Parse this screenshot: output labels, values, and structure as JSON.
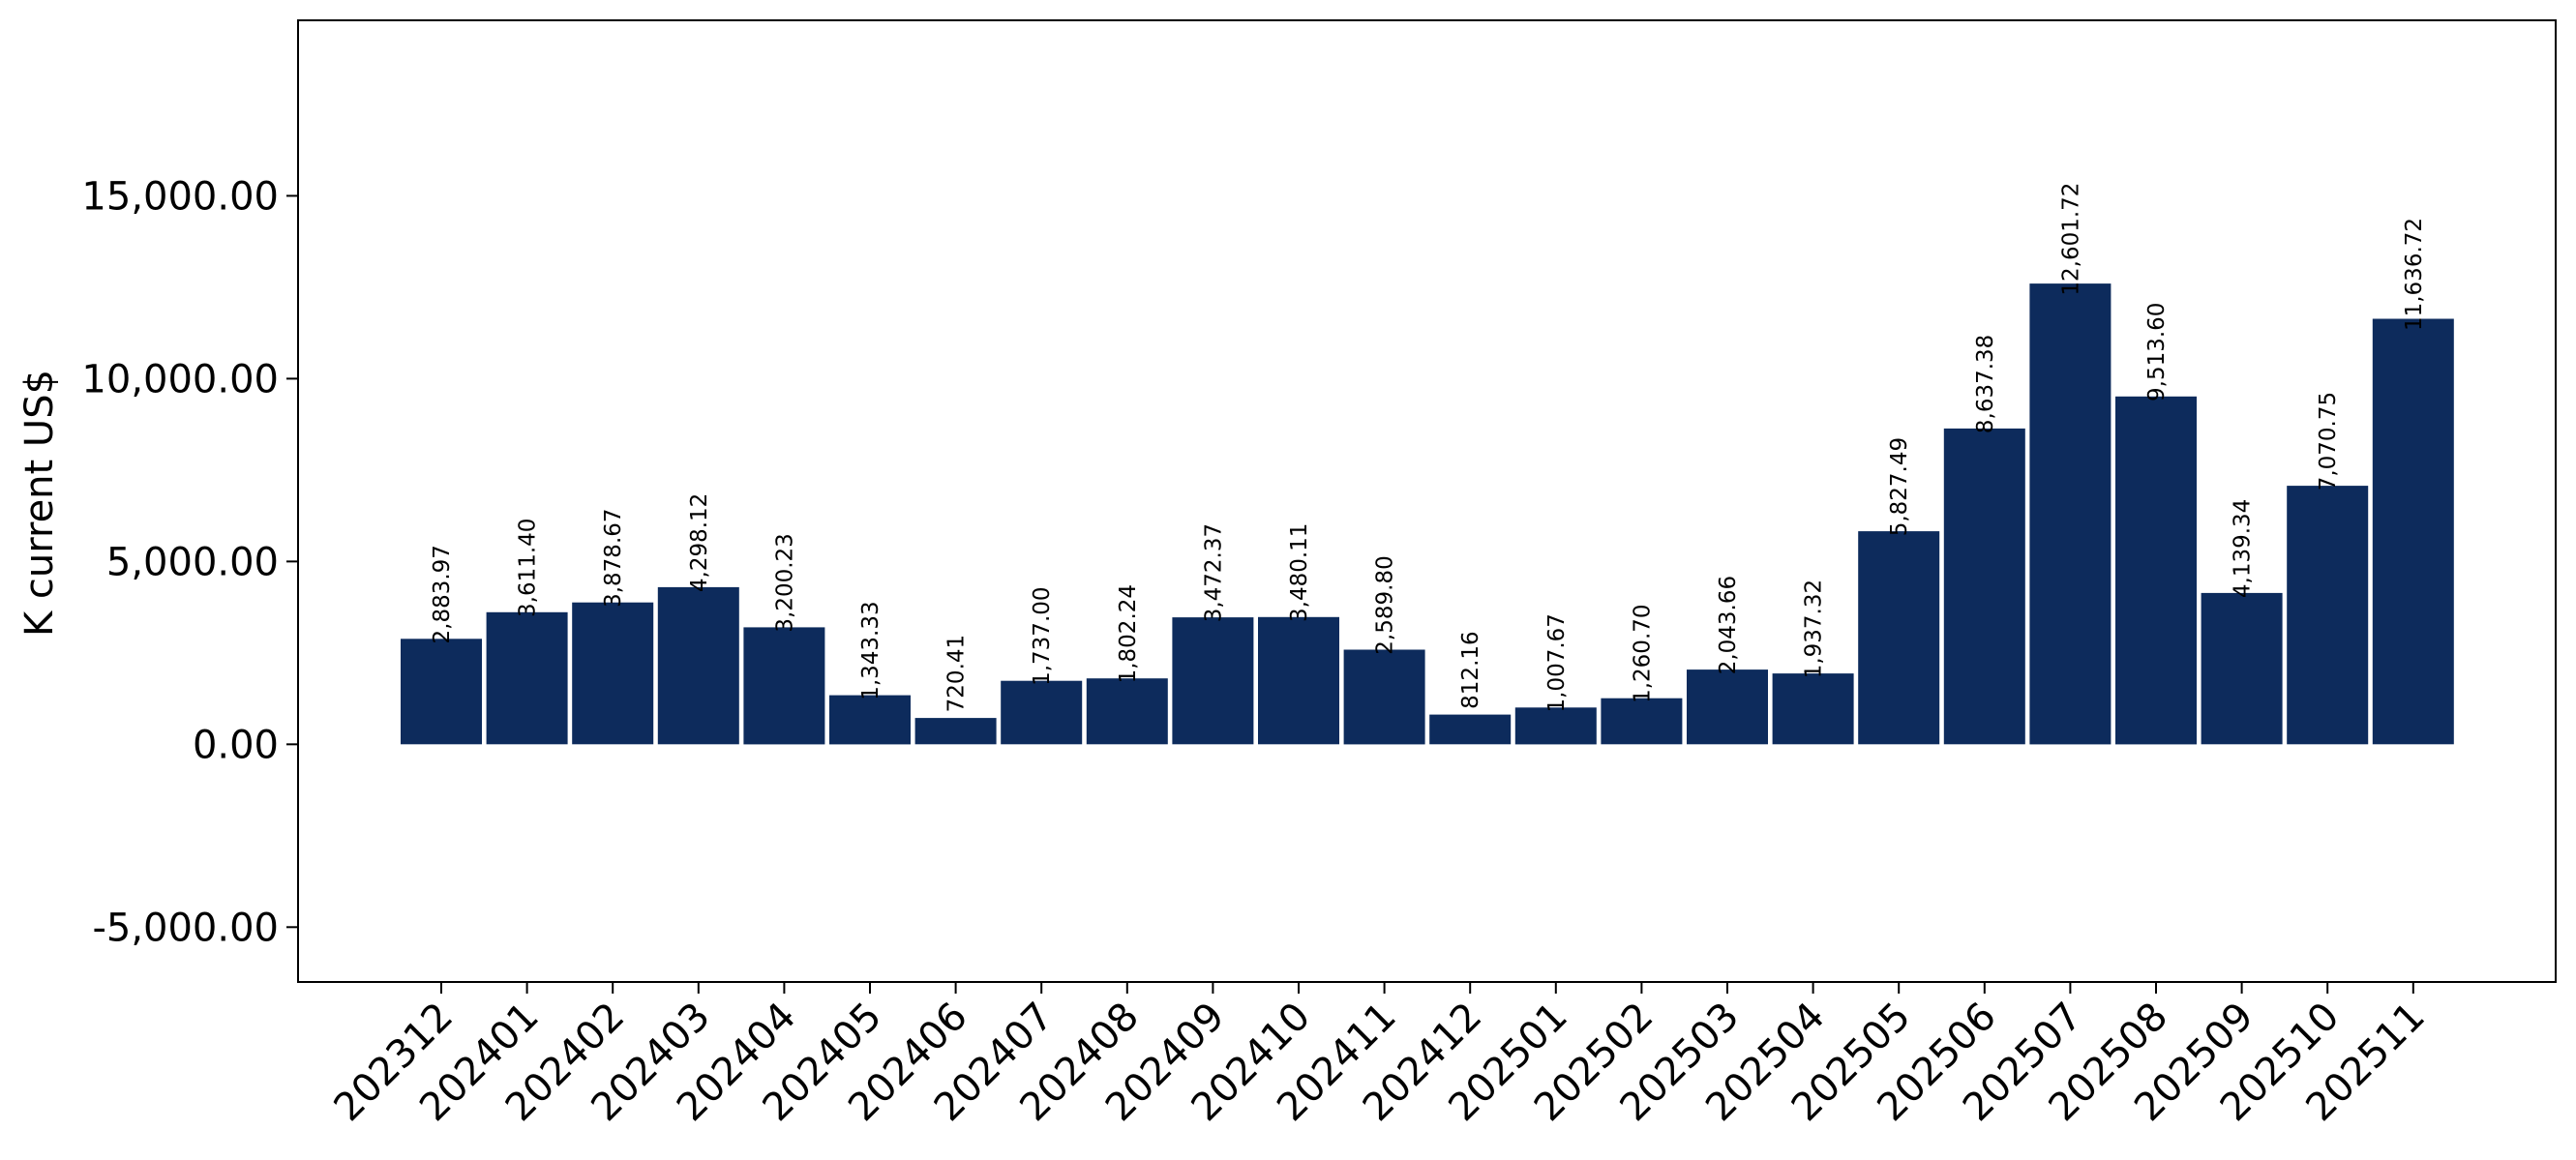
{
  "chart_data": {
    "type": "bar",
    "title": "",
    "xlabel": "",
    "ylabel": "K current US$",
    "ylim": [
      -6500,
      19800
    ],
    "yticks": [
      -5000,
      0,
      5000,
      10000,
      15000
    ],
    "ytick_labels": [
      "-5,000.00",
      "0.00",
      "5,000.00",
      "10,000.00",
      "15,000.00"
    ],
    "grid": false,
    "legend": "none",
    "bar_color": "#0d2b5c",
    "categories": [
      "202312",
      "202401",
      "202402",
      "202403",
      "202404",
      "202405",
      "202406",
      "202407",
      "202408",
      "202409",
      "202410",
      "202411",
      "202412",
      "202501",
      "202502",
      "202503",
      "202504",
      "202505",
      "202506",
      "202507",
      "202508",
      "202509",
      "202510",
      "202511"
    ],
    "values": [
      2883.97,
      3611.4,
      3878.67,
      4298.12,
      3200.23,
      1343.33,
      720.41,
      1737.0,
      1802.24,
      3472.37,
      3480.11,
      2589.8,
      812.16,
      1007.67,
      1260.7,
      2043.66,
      1937.32,
      5827.49,
      8637.38,
      12601.72,
      9513.6,
      4139.34,
      7070.75,
      11636.72
    ],
    "value_labels": [
      "2,883.97",
      "3,611.40",
      "3,878.67",
      "4,298.12",
      "3,200.23",
      "1,343.33",
      "720.41",
      "1,737.00",
      "1,802.24",
      "3,472.37",
      "3,480.11",
      "2,589.80",
      "812.16",
      "1,007.67",
      "1,260.70",
      "2,043.66",
      "1,937.32",
      "5,827.49",
      "8,637.38",
      "12,601.72",
      "9,513.60",
      "4,139.34",
      "7,070.75",
      "11,636.72"
    ]
  }
}
